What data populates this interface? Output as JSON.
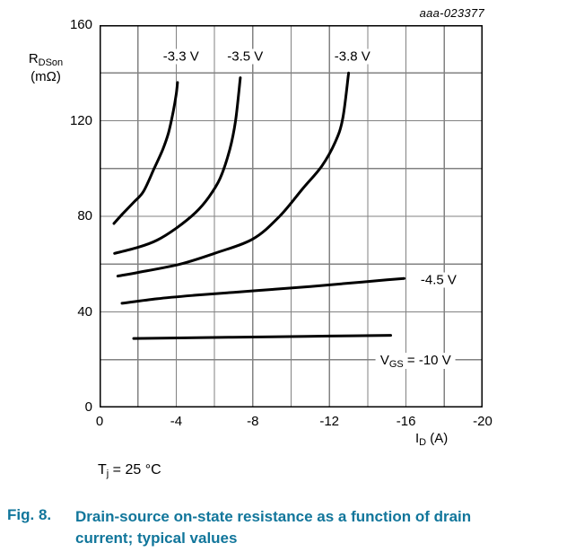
{
  "watermark": "aaa-023377",
  "condition": {
    "pre": "T",
    "sub": "j",
    "post": " = 25 °C"
  },
  "caption": {
    "fig": "Fig. 8.",
    "text": "Drain-source on-state resistance as a function of drain current; typical values"
  },
  "colors": {
    "caption": "#11769b",
    "grid": "#828282",
    "axis_border": "#000000",
    "curve": "#000000",
    "page_bg": "#ffffff"
  },
  "chart_data": {
    "type": "line",
    "title": "",
    "xlabel": {
      "main": "I",
      "sub": "D",
      "unit": " (A)"
    },
    "ylabel": {
      "main": "R",
      "sub": "DSon",
      "unit": "(mΩ)"
    },
    "xlim": [
      0,
      -20
    ],
    "ylim": [
      0,
      160
    ],
    "x_axis_unit": "A",
    "y_axis_unit": "mΩ",
    "grid": "on, minor gridlines every 2 A (x) and 20 mΩ (y)",
    "xticks": {
      "values": [
        0,
        -4,
        -8,
        -12,
        -16,
        -20
      ],
      "labels": [
        "0",
        "-4",
        "-8",
        "-12",
        "-16",
        "-20"
      ],
      "minor_step": 2
    },
    "yticks": {
      "values": [
        0,
        40,
        80,
        120,
        160
      ],
      "labels": [
        "0",
        "40",
        "80",
        "120",
        "160"
      ],
      "minor_step": 20
    },
    "vgs_annotation": {
      "pre": "V",
      "sub": "GS",
      "post": " = -10 V",
      "pos": {
        "x": -16.5,
        "y": 19.5
      }
    },
    "series": [
      {
        "name": "VGS = -3.3 V",
        "label": "-3.3 V",
        "label_pos": {
          "x": -4.25,
          "y": 147
        },
        "points": [
          [
            -0.75,
            77
          ],
          [
            -1.2,
            81
          ],
          [
            -1.8,
            86
          ],
          [
            -2.3,
            90.5
          ],
          [
            -2.85,
            100
          ],
          [
            -3.3,
            108
          ],
          [
            -3.6,
            115
          ],
          [
            -3.85,
            124
          ],
          [
            -4.0,
            131
          ],
          [
            -4.07,
            136
          ]
        ]
      },
      {
        "name": "VGS = -3.5 V",
        "label": "-3.5 V",
        "label_pos": {
          "x": -7.6,
          "y": 147
        },
        "points": [
          [
            -0.78,
            64.5
          ],
          [
            -2,
            67
          ],
          [
            -3,
            70
          ],
          [
            -4,
            75
          ],
          [
            -5,
            81.5
          ],
          [
            -5.7,
            88
          ],
          [
            -6.3,
            96
          ],
          [
            -6.8,
            108
          ],
          [
            -7.1,
            120
          ],
          [
            -7.35,
            138
          ]
        ]
      },
      {
        "name": "VGS = -3.8 V",
        "label": "-3.8 V",
        "label_pos": {
          "x": -13.2,
          "y": 147
        },
        "points": [
          [
            -0.95,
            55
          ],
          [
            -2,
            56.5
          ],
          [
            -4.2,
            60
          ],
          [
            -6,
            64.5
          ],
          [
            -8,
            70.5
          ],
          [
            -9.4,
            80
          ],
          [
            -10.6,
            91.5
          ],
          [
            -11.6,
            101
          ],
          [
            -12.3,
            111
          ],
          [
            -12.7,
            121
          ],
          [
            -13.0,
            140
          ]
        ]
      },
      {
        "name": "VGS = -4.5 V",
        "label": "-4.5 V",
        "label_pos": {
          "x": -17.7,
          "y": 53.5
        },
        "points": [
          [
            -1.17,
            43.6
          ],
          [
            -3,
            45.5
          ],
          [
            -5,
            47
          ],
          [
            -7,
            48.2
          ],
          [
            -9,
            49.4
          ],
          [
            -11,
            50.6
          ],
          [
            -13,
            52
          ],
          [
            -15,
            53.4
          ],
          [
            -15.9,
            54
          ]
        ]
      },
      {
        "name": "VGS = -10 V",
        "label": null,
        "label_pos": null,
        "points": [
          [
            -1.78,
            28.9
          ],
          [
            -5,
            29.2
          ],
          [
            -9,
            29.6
          ],
          [
            -12,
            29.9
          ],
          [
            -15.2,
            30.2
          ]
        ]
      }
    ]
  }
}
